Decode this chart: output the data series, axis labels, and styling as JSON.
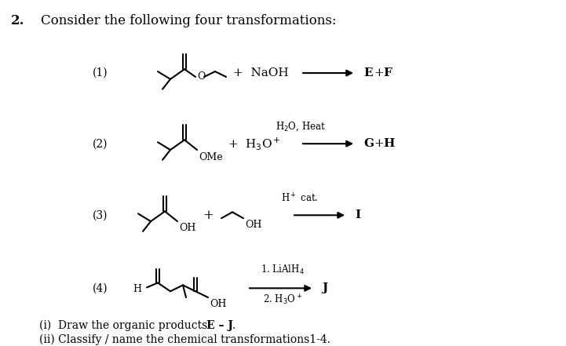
{
  "title_num": "2.",
  "title_text": "Consider the following four transformations:",
  "bg_color": "#ffffff",
  "text_color": "#000000",
  "footer_line1": "(i)  Draw the organic products ",
  "footer_bold": "E – J",
  "footer_line1_end": ".",
  "footer_line2": "(ii) Classify / name the chemical transformations1-4."
}
